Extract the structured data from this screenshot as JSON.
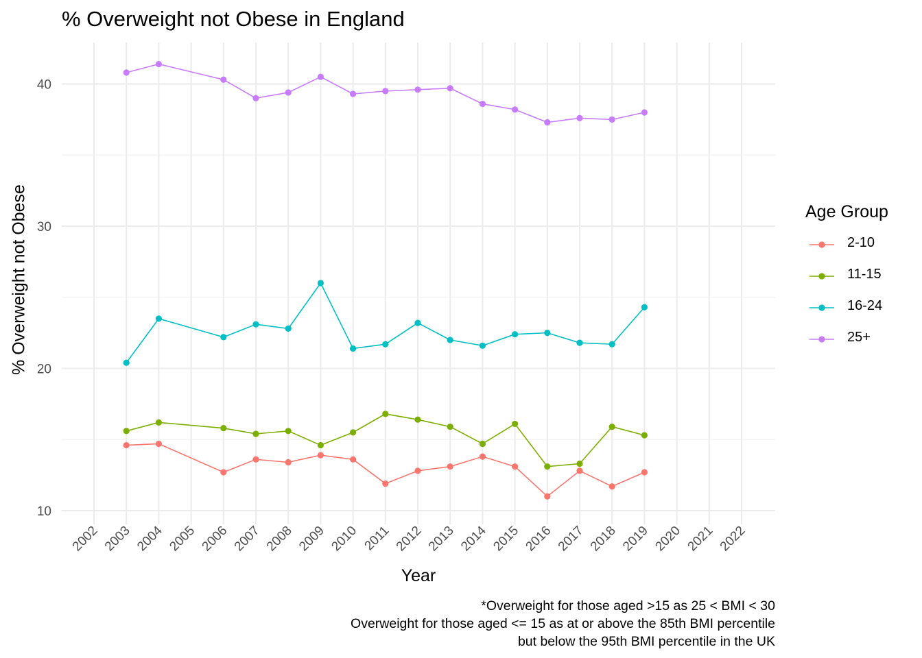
{
  "chart_data": {
    "type": "line",
    "title": "% Overweight not Obese in England",
    "xlabel": "Year",
    "ylabel": "% Overweight not Obese",
    "x_ticks": [
      "2002",
      "2003",
      "2004",
      "2005",
      "2006",
      "2007",
      "2008",
      "2009",
      "2010",
      "2011",
      "2012",
      "2013",
      "2014",
      "2015",
      "2016",
      "2017",
      "2018",
      "2019",
      "2020",
      "2021",
      "2022"
    ],
    "y_ticks": [
      10,
      20,
      30,
      40
    ],
    "ylim": [
      9.5,
      42.9
    ],
    "grid": true,
    "legend_title": "Age Group",
    "legend_position": "right",
    "caption": [
      "*Overweight for those aged >15 as 25 < BMI < 30",
      "Overweight for those aged <= 15 as at or above the 85th BMI percentile",
      "but below the 95th BMI percentile in the UK"
    ],
    "series": [
      {
        "name": "2-10",
        "color": "#F8766D",
        "x": [
          "2003",
          "2004",
          "2006",
          "2007",
          "2008",
          "2009",
          "2010",
          "2011",
          "2012",
          "2013",
          "2014",
          "2015",
          "2016",
          "2017",
          "2018",
          "2019"
        ],
        "values": [
          14.6,
          14.7,
          12.7,
          13.6,
          13.4,
          13.9,
          13.6,
          11.9,
          12.8,
          13.1,
          13.8,
          13.1,
          11.0,
          12.8,
          11.7,
          12.7
        ]
      },
      {
        "name": "11-15",
        "color": "#7CAE00",
        "x": [
          "2003",
          "2004",
          "2006",
          "2007",
          "2008",
          "2009",
          "2010",
          "2011",
          "2012",
          "2013",
          "2014",
          "2015",
          "2016",
          "2017",
          "2018",
          "2019"
        ],
        "values": [
          15.6,
          16.2,
          15.8,
          15.4,
          15.6,
          14.6,
          15.5,
          16.8,
          16.4,
          15.9,
          14.7,
          16.1,
          13.1,
          13.3,
          15.9,
          15.3
        ]
      },
      {
        "name": "16-24",
        "color": "#00BFC4",
        "x": [
          "2003",
          "2004",
          "2006",
          "2007",
          "2008",
          "2009",
          "2010",
          "2011",
          "2012",
          "2013",
          "2014",
          "2015",
          "2016",
          "2017",
          "2018",
          "2019"
        ],
        "values": [
          20.4,
          23.5,
          22.2,
          23.1,
          22.8,
          26.0,
          21.4,
          21.7,
          23.2,
          22.0,
          21.6,
          22.4,
          22.5,
          21.8,
          21.7,
          24.3
        ]
      },
      {
        "name": "25+",
        "color": "#C77CFF",
        "x": [
          "2003",
          "2004",
          "2006",
          "2007",
          "2008",
          "2009",
          "2010",
          "2011",
          "2012",
          "2013",
          "2014",
          "2015",
          "2016",
          "2017",
          "2018",
          "2019"
        ],
        "values": [
          40.8,
          41.4,
          40.3,
          39.0,
          39.4,
          40.5,
          39.3,
          39.5,
          39.6,
          39.7,
          38.6,
          38.2,
          37.3,
          37.6,
          37.5,
          38.0
        ]
      }
    ]
  }
}
